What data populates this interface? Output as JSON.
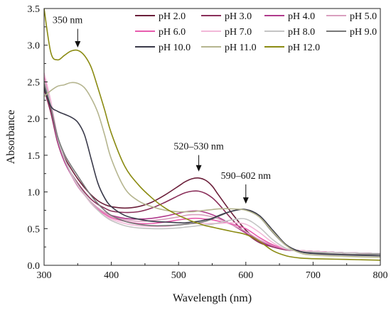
{
  "chart_data": {
    "type": "line",
    "xlabel": "Wavelength (nm)",
    "ylabel": "Absorbance",
    "xlim": [
      300,
      800
    ],
    "ylim": [
      0.0,
      3.5
    ],
    "xticks": [
      "300",
      "400",
      "500",
      "600",
      "700",
      "800"
    ],
    "yticks": [
      "0.0",
      "0.5",
      "1.0",
      "1.5",
      "2.0",
      "2.5",
      "3.0",
      "3.5"
    ],
    "grid": false,
    "legend_position": "top-right",
    "legend_columns": 4,
    "x": [
      300,
      310,
      320,
      330,
      340,
      350,
      360,
      370,
      380,
      390,
      400,
      420,
      440,
      460,
      480,
      500,
      510,
      520,
      530,
      540,
      550,
      560,
      580,
      600,
      620,
      640,
      660,
      680,
      700,
      750,
      800
    ],
    "series": [
      {
        "name": "pH 2.0",
        "color": "#6b1f3a",
        "values": [
          2.45,
          2.12,
          1.72,
          1.48,
          1.32,
          1.18,
          1.06,
          0.96,
          0.88,
          0.83,
          0.8,
          0.78,
          0.8,
          0.86,
          0.96,
          1.08,
          1.14,
          1.18,
          1.19,
          1.16,
          1.08,
          0.95,
          0.7,
          0.48,
          0.33,
          0.26,
          0.22,
          0.2,
          0.19,
          0.17,
          0.16
        ]
      },
      {
        "name": "pH 3.0",
        "color": "#8a2f5a",
        "values": [
          2.4,
          2.08,
          1.68,
          1.42,
          1.26,
          1.12,
          1.0,
          0.9,
          0.83,
          0.78,
          0.74,
          0.72,
          0.73,
          0.78,
          0.86,
          0.95,
          0.99,
          1.01,
          1.01,
          0.98,
          0.92,
          0.83,
          0.62,
          0.44,
          0.31,
          0.25,
          0.21,
          0.2,
          0.19,
          0.17,
          0.16
        ]
      },
      {
        "name": "pH 4.0",
        "color": "#b03a8c",
        "values": [
          2.5,
          2.15,
          1.7,
          1.42,
          1.24,
          1.08,
          0.96,
          0.86,
          0.78,
          0.72,
          0.68,
          0.64,
          0.63,
          0.64,
          0.67,
          0.71,
          0.73,
          0.74,
          0.74,
          0.72,
          0.69,
          0.65,
          0.55,
          0.44,
          0.33,
          0.26,
          0.22,
          0.2,
          0.19,
          0.17,
          0.16
        ]
      },
      {
        "name": "pH 5.0",
        "color": "#d9a0bf",
        "values": [
          2.55,
          2.2,
          1.74,
          1.45,
          1.26,
          1.1,
          0.97,
          0.86,
          0.78,
          0.72,
          0.67,
          0.62,
          0.6,
          0.61,
          0.63,
          0.66,
          0.68,
          0.69,
          0.69,
          0.68,
          0.66,
          0.63,
          0.55,
          0.46,
          0.35,
          0.27,
          0.22,
          0.2,
          0.19,
          0.17,
          0.16
        ]
      },
      {
        "name": "pH 6.0",
        "color": "#e85cae",
        "values": [
          2.6,
          2.22,
          1.75,
          1.46,
          1.26,
          1.1,
          0.97,
          0.85,
          0.76,
          0.7,
          0.65,
          0.6,
          0.57,
          0.57,
          0.59,
          0.62,
          0.63,
          0.64,
          0.64,
          0.63,
          0.62,
          0.6,
          0.56,
          0.5,
          0.38,
          0.28,
          0.22,
          0.2,
          0.19,
          0.17,
          0.16
        ]
      },
      {
        "name": "pH 7.0",
        "color": "#f2b8d8",
        "values": [
          2.62,
          2.24,
          1.76,
          1.46,
          1.25,
          1.09,
          0.96,
          0.84,
          0.75,
          0.68,
          0.63,
          0.57,
          0.54,
          0.53,
          0.53,
          0.55,
          0.56,
          0.57,
          0.57,
          0.57,
          0.57,
          0.57,
          0.58,
          0.56,
          0.45,
          0.31,
          0.22,
          0.2,
          0.19,
          0.17,
          0.16
        ]
      },
      {
        "name": "pH 8.0",
        "color": "#c4c4c4",
        "values": [
          2.52,
          2.18,
          1.74,
          1.46,
          1.26,
          1.1,
          0.97,
          0.85,
          0.75,
          0.67,
          0.61,
          0.54,
          0.51,
          0.5,
          0.5,
          0.51,
          0.52,
          0.53,
          0.54,
          0.55,
          0.56,
          0.58,
          0.62,
          0.63,
          0.52,
          0.35,
          0.23,
          0.19,
          0.18,
          0.17,
          0.16
        ]
      },
      {
        "name": "pH 9.0",
        "color": "#777777",
        "values": [
          2.48,
          2.15,
          1.76,
          1.52,
          1.36,
          1.22,
          1.08,
          0.95,
          0.84,
          0.75,
          0.68,
          0.6,
          0.56,
          0.54,
          0.54,
          0.55,
          0.56,
          0.57,
          0.58,
          0.6,
          0.63,
          0.67,
          0.74,
          0.76,
          0.66,
          0.45,
          0.27,
          0.19,
          0.17,
          0.15,
          0.15
        ]
      },
      {
        "name": "pH 10.0",
        "color": "#3a3a4a",
        "values": [
          2.42,
          2.17,
          2.1,
          2.06,
          2.02,
          1.95,
          1.78,
          1.45,
          1.12,
          0.92,
          0.8,
          0.68,
          0.63,
          0.6,
          0.59,
          0.58,
          0.58,
          0.59,
          0.6,
          0.62,
          0.64,
          0.68,
          0.74,
          0.76,
          0.68,
          0.48,
          0.28,
          0.19,
          0.16,
          0.14,
          0.13
        ]
      },
      {
        "name": "pH 11.0",
        "color": "#b5b58f",
        "values": [
          2.3,
          2.38,
          2.44,
          2.46,
          2.49,
          2.48,
          2.42,
          2.28,
          2.08,
          1.78,
          1.45,
          1.05,
          0.88,
          0.8,
          0.75,
          0.73,
          0.73,
          0.73,
          0.74,
          0.75,
          0.76,
          0.77,
          0.77,
          0.75,
          0.66,
          0.46,
          0.27,
          0.17,
          0.14,
          0.12,
          0.11
        ]
      },
      {
        "name": "pH 12.0",
        "color": "#8b8b12",
        "values": [
          3.5,
          2.9,
          2.8,
          2.86,
          2.92,
          2.93,
          2.86,
          2.7,
          2.42,
          2.12,
          1.8,
          1.35,
          1.1,
          0.92,
          0.78,
          0.68,
          0.64,
          0.6,
          0.57,
          0.54,
          0.52,
          0.5,
          0.46,
          0.42,
          0.33,
          0.2,
          0.13,
          0.1,
          0.09,
          0.08,
          0.07
        ]
      }
    ],
    "annotations": [
      {
        "text": "350 nm",
        "x": 350,
        "y": 2.93,
        "label_x": 335,
        "label_y": 3.3
      },
      {
        "text": "520–530 nm",
        "x": 530,
        "y": 1.24,
        "label_x": 530,
        "label_y": 1.58
      },
      {
        "text": "590–602 nm",
        "x": 600,
        "y": 0.8,
        "label_x": 600,
        "label_y": 1.18
      }
    ]
  }
}
